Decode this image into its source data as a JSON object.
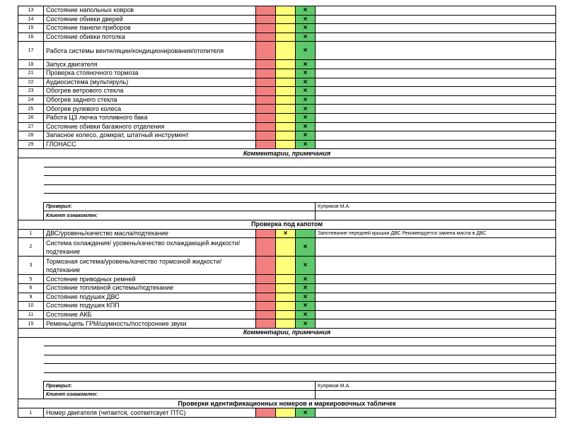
{
  "section1": {
    "rows": [
      {
        "num": "13",
        "name": "Состояние напольных ковров",
        "mark": "×",
        "mark_col": "green",
        "comment": ""
      },
      {
        "num": "14",
        "name": "Состояние обивки дверей",
        "mark": "×",
        "mark_col": "green",
        "comment": ""
      },
      {
        "num": "15",
        "name": "Состояние панели приборов",
        "mark": "×",
        "mark_col": "green",
        "comment": ""
      },
      {
        "num": "16",
        "name": "Состояние обивки потолка",
        "mark": "×",
        "mark_col": "green",
        "comment": ""
      },
      {
        "num": "17",
        "name": "Работа системы вентиляции/кондиционирования/отопителя",
        "mark": "×",
        "mark_col": "green",
        "comment": ""
      },
      {
        "num": "18",
        "name": "Запуск двигателя",
        "mark": "×",
        "mark_col": "green",
        "comment": ""
      },
      {
        "num": "21",
        "name": "Проверка стояночного тормоза",
        "mark": "×",
        "mark_col": "green",
        "comment": ""
      },
      {
        "num": "22",
        "name": "Аудиосистема (мультируль)",
        "mark": "×",
        "mark_col": "green",
        "comment": ""
      },
      {
        "num": "23",
        "name": "Обогрев ветрового стекла",
        "mark": "×",
        "mark_col": "green",
        "comment": ""
      },
      {
        "num": "24",
        "name": "Обогрев заднего стекла",
        "mark": "×",
        "mark_col": "green",
        "comment": ""
      },
      {
        "num": "25",
        "name": "Обогрев рулевого колеса",
        "mark": "×",
        "mark_col": "green",
        "comment": ""
      },
      {
        "num": "26",
        "name": "Работа ЦЗ лючка топливного бака",
        "mark": "×",
        "mark_col": "green",
        "comment": ""
      },
      {
        "num": "27",
        "name": "Состояние обивки багажного отделения",
        "mark": "×",
        "mark_col": "green",
        "comment": ""
      },
      {
        "num": "28",
        "name": "Запасное колесо, домкрат, штатный инструмент",
        "mark": "×",
        "mark_col": "green",
        "comment": ""
      },
      {
        "num": "29",
        "name": "ГЛОНАСС",
        "mark": "×",
        "mark_col": "green",
        "comment": ""
      }
    ],
    "comments_title": "Комментарии, примечания",
    "checked_label": "Проверил:",
    "checked_value": "Купряков М.А.",
    "client_label": "Клиент ознакомлен:",
    "client_value": ""
  },
  "section2": {
    "title": "Проверка под капотом",
    "rows": [
      {
        "num": "1",
        "name": "ДВС/уровень/качество масла/подтекание",
        "mark": "×",
        "mark_col": "yellow",
        "comment": "Запотевание передней крышки ДВС Рекомендуется замена масла в ДВС"
      },
      {
        "num": "2",
        "name": "Система охлаждения/ уровень/качество охлаждающей жидкости/подтекание",
        "mark": "×",
        "mark_col": "green",
        "comment": ""
      },
      {
        "num": "3",
        "name": "Тормозная система/уровень/качество тормозной жидкости/подтекание",
        "mark": "×",
        "mark_col": "green",
        "comment": ""
      },
      {
        "num": "5",
        "name": "Состояние приводных ремней",
        "mark": "×",
        "mark_col": "green",
        "comment": ""
      },
      {
        "num": "6",
        "name": "Состояние топливной системы/подтекание",
        "mark": "×",
        "mark_col": "green",
        "comment": ""
      },
      {
        "num": "9",
        "name": "Состояние подушек ДВС",
        "mark": "×",
        "mark_col": "green",
        "comment": ""
      },
      {
        "num": "10",
        "name": "Состояние подушек КПП",
        "mark": "×",
        "mark_col": "green",
        "comment": ""
      },
      {
        "num": "11",
        "name": "Состояние АКБ",
        "mark": "×",
        "mark_col": "green",
        "comment": ""
      },
      {
        "num": "15",
        "name": "Ремень/цепь ГРМ/шумность/посторонние звуки",
        "mark": "×",
        "mark_col": "green",
        "comment": ""
      }
    ],
    "comments_title": "Комментарии, примечания",
    "checked_label": "Проверил:",
    "checked_value": "Купряков М.А.",
    "client_label": "Клиент ознакомлен:",
    "client_value": "."
  },
  "section3": {
    "title": "Проверки идентификационных номеров и маркировочных табличек",
    "rows": [
      {
        "num": "1",
        "name": "Номер двигателя (читается, соответсвует ПТС)",
        "mark": "×",
        "mark_col": "green",
        "comment": ""
      }
    ]
  },
  "colors": {
    "red": "#f28080",
    "yellow": "#ffff7a",
    "green": "#5ec86b"
  }
}
